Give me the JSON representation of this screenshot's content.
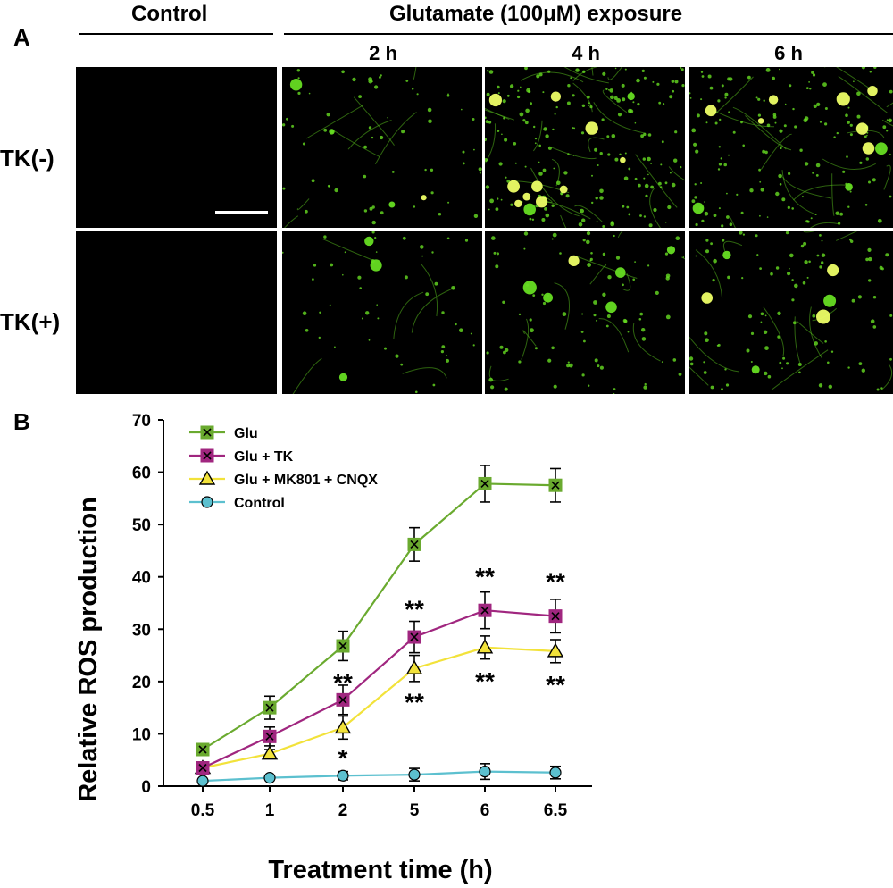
{
  "panel_a": {
    "letter": "A",
    "control_header": "Control",
    "exposure_header": "Glutamate (100μM)  exposure",
    "time_labels": [
      "2 h",
      "4 h",
      "6 h"
    ],
    "rows": [
      "TK(-)",
      "TK(+)"
    ],
    "image_colors": {
      "background": "#000000",
      "fluorescence": "#66dd22",
      "bright": "#eeff66"
    }
  },
  "panel_b": {
    "letter": "B"
  },
  "chart_data": {
    "type": "line",
    "ylabel": "Relative ROS production",
    "xlabel": "Treatment time (h)",
    "categories": [
      "0.5",
      "1",
      "2",
      "5",
      "6",
      "6.5"
    ],
    "ylim": [
      0,
      70
    ],
    "yticks": [
      0,
      10,
      20,
      30,
      40,
      50,
      60,
      70
    ],
    "legend_position": "top-left",
    "grid": false,
    "series": [
      {
        "name": "Glu",
        "color": "#6aaa2f",
        "fill": "#6aaa2f",
        "marker": "square-x",
        "values": [
          7,
          15,
          26.8,
          46.2,
          57.8,
          57.5
        ],
        "errors": [
          0.5,
          2.2,
          2.8,
          3.2,
          3.5,
          3.2
        ]
      },
      {
        "name": "Glu + TK",
        "color": "#a0267f",
        "fill": "#a0267f",
        "marker": "square-x",
        "values": [
          3.5,
          9.5,
          16.5,
          28.5,
          33.6,
          32.5
        ],
        "errors": [
          0.5,
          1.8,
          2.8,
          3.0,
          3.5,
          3.2
        ]
      },
      {
        "name": "Glu + MK801 + CNQX",
        "color": "#f2e23a",
        "fill": "#f2e23a",
        "marker": "triangle",
        "values": [
          3.5,
          6.2,
          11.2,
          22.5,
          26.5,
          25.8
        ],
        "errors": [
          0.5,
          0.8,
          2.2,
          2.5,
          2.2,
          2.2
        ]
      },
      {
        "name": "Control",
        "color": "#5cc0cf",
        "fill": "#5cc0cf",
        "marker": "circle",
        "values": [
          1.0,
          1.6,
          2.0,
          2.2,
          2.8,
          2.6
        ],
        "errors": [
          0.2,
          0.3,
          0.8,
          1.2,
          1.5,
          1.2
        ]
      }
    ],
    "annotations": [
      {
        "category": "2",
        "text": "**",
        "y": 20.2
      },
      {
        "category": "2",
        "text": "*",
        "y": 5.8
      },
      {
        "category": "5",
        "text": "**",
        "y": 34.2
      },
      {
        "category": "5",
        "text": "**",
        "y": 16.5
      },
      {
        "category": "6",
        "text": "**",
        "y": 40.5
      },
      {
        "category": "6",
        "text": "**",
        "y": 20.5
      },
      {
        "category": "6.5",
        "text": "**",
        "y": 39.5
      },
      {
        "category": "6.5",
        "text": "**",
        "y": 19.8
      }
    ]
  }
}
